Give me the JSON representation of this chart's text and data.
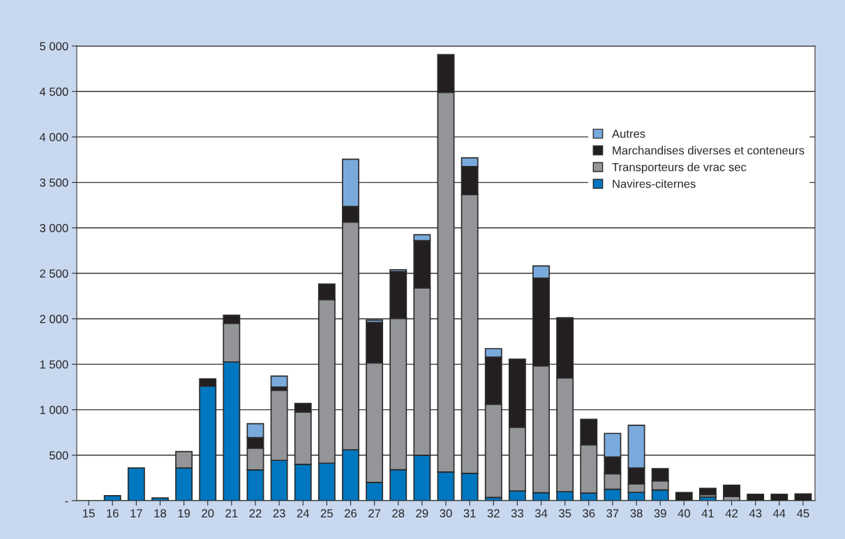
{
  "chart_data": {
    "type": "bar",
    "stacked": true,
    "categories": [
      "15",
      "16",
      "17",
      "18",
      "19",
      "20",
      "21",
      "22",
      "23",
      "24",
      "25",
      "26",
      "27",
      "28",
      "29",
      "30",
      "31",
      "32",
      "33",
      "34",
      "35",
      "36",
      "37",
      "38",
      "39",
      "40",
      "41",
      "42",
      "43",
      "44",
      "45"
    ],
    "series": [
      {
        "name": "Navires-citernes",
        "color": "#0077c0",
        "values": [
          0,
          55,
          360,
          30,
          360,
          1260,
          1525,
          338,
          443,
          400,
          412,
          560,
          200,
          340,
          500,
          315,
          300,
          35,
          107,
          87,
          100,
          84,
          125,
          92,
          118,
          0,
          40,
          null,
          0,
          0,
          0
        ]
      },
      {
        "name": "Transporteurs de vrac sec",
        "color": "#939598",
        "values": [
          0,
          0,
          0,
          0,
          180,
          0,
          425,
          240,
          772,
          575,
          1800,
          2505,
          1315,
          1665,
          1840,
          4175,
          3065,
          1025,
          700,
          1395,
          1250,
          530,
          170,
          92,
          100,
          0,
          25,
          45,
          0,
          0,
          null
        ]
      },
      {
        "name": "Marchandises diverses et conteneurs",
        "color": "#231f20",
        "values": [
          0,
          0,
          0,
          0,
          0,
          80,
          90,
          115,
          35,
          95,
          170,
          170,
          445,
          515,
          520,
          415,
          310,
          520,
          750,
          965,
          650,
          280,
          185,
          175,
          135,
          90,
          70,
          125,
          70,
          70,
          75
        ]
      },
      {
        "name": "Autres",
        "color": "#7aaadc",
        "values": [
          0,
          0,
          0,
          0,
          0,
          0,
          0,
          153,
          120,
          0,
          0,
          520,
          25,
          20,
          65,
          0,
          95,
          92,
          0,
          135,
          12,
          0,
          260,
          470,
          0,
          0,
          0,
          0,
          0,
          0,
          0
        ]
      }
    ],
    "ylim": [
      0,
      5000
    ],
    "yticks": [
      {
        "value": 0,
        "label": "-"
      },
      500,
      {
        "value": 1000,
        "label": "1 000"
      },
      {
        "value": 1500,
        "label": "1 500"
      },
      {
        "value": 2000,
        "label": "2 000"
      },
      {
        "value": 2500,
        "label": "2 500"
      },
      {
        "value": 3000,
        "label": "3 000"
      },
      {
        "value": 3500,
        "label": "3 500"
      },
      {
        "value": 4000,
        "label": "4 000"
      },
      {
        "value": 4500,
        "label": "4 500"
      },
      {
        "value": 5000,
        "label": "5 000"
      }
    ],
    "grid": "y",
    "legend": "top right"
  }
}
